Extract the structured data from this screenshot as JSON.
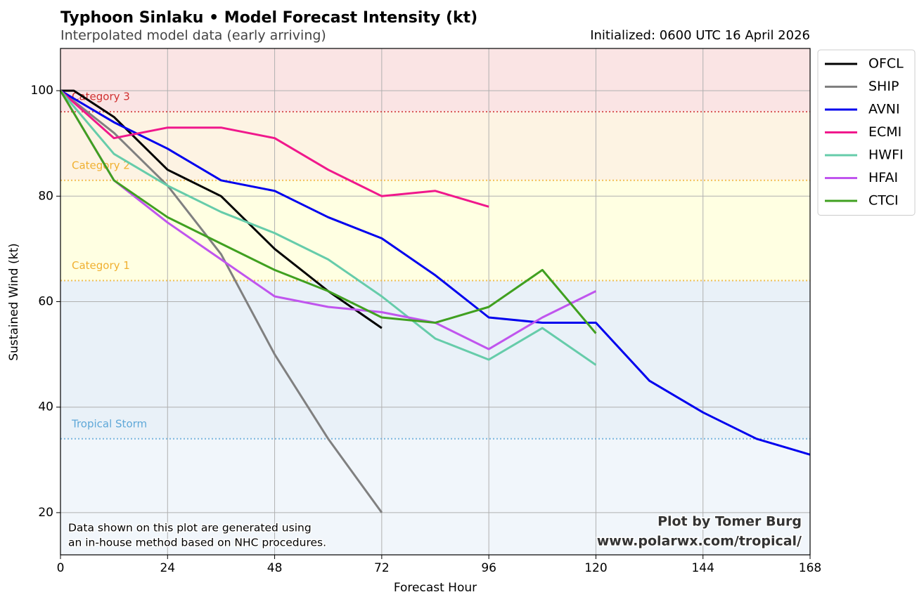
{
  "chart_data": {
    "type": "line",
    "title": "Typhoon Sinlaku • Model Forecast Intensity (kt)",
    "subtitle": "Interpolated model data (early arriving)",
    "initialized": "Initialized: 0600 UTC 16 April 2026",
    "xlabel": "Forecast Hour",
    "ylabel": "Sustained Wind (kt)",
    "note": [
      "Data shown on this plot are generated using",
      "an in-house method based on NHC procedures."
    ],
    "credit": [
      "Plot by Tomer Burg",
      "www.polarwx.com/tropical/"
    ],
    "xlim": [
      0,
      168
    ],
    "ylim": [
      12,
      108
    ],
    "xticks": [
      0,
      24,
      48,
      72,
      96,
      120,
      144,
      168
    ],
    "yticks": [
      20,
      40,
      60,
      80,
      100
    ],
    "grid": true,
    "legend": "outside-upper-right",
    "thresholds": [
      {
        "label": "Tropical Storm",
        "value": 34,
        "color": "#5fa8d8",
        "fill": "#e9f1f8"
      },
      {
        "label": "Category 1",
        "value": 64,
        "color": "#f0b030",
        "fill": "#ffffe2"
      },
      {
        "label": "Category 2",
        "value": 83,
        "color": "#f0b030",
        "fill": "#fdf3e3"
      },
      {
        "label": "Category 3",
        "value": 96,
        "color": "#d03030",
        "fill": "#fae4e4"
      }
    ],
    "below_fill": "#f1f6fb",
    "series": [
      {
        "name": "OFCL",
        "color": "#000000",
        "x": [
          0,
          3,
          12,
          24,
          36,
          48,
          60,
          72
        ],
        "values": [
          100,
          100,
          95,
          85,
          80,
          70,
          62,
          55
        ]
      },
      {
        "name": "SHIP",
        "color": "#808080",
        "x": [
          0,
          12,
          24,
          36,
          48,
          60,
          72
        ],
        "values": [
          100,
          92,
          82,
          69,
          50,
          34,
          20
        ]
      },
      {
        "name": "AVNI",
        "color": "#0000ee",
        "x": [
          0,
          12,
          24,
          36,
          48,
          60,
          72,
          84,
          96,
          108,
          120,
          132,
          144,
          156,
          168
        ],
        "values": [
          100,
          94,
          89,
          83,
          81,
          76,
          72,
          65,
          57,
          56,
          56,
          45,
          39,
          34,
          31
        ]
      },
      {
        "name": "ECMI",
        "color": "#f0188c",
        "x": [
          0,
          12,
          24,
          36,
          48,
          60,
          72,
          84,
          96
        ],
        "values": [
          100,
          91,
          93,
          93,
          91,
          85,
          80,
          81,
          78
        ]
      },
      {
        "name": "HWFI",
        "color": "#66ccaa",
        "x": [
          0,
          12,
          24,
          36,
          48,
          60,
          72,
          84,
          96,
          108,
          120
        ],
        "values": [
          100,
          88,
          82,
          77,
          73,
          68,
          61,
          53,
          49,
          55,
          48
        ]
      },
      {
        "name": "HFAI",
        "color": "#c055ee",
        "x": [
          0,
          12,
          24,
          36,
          48,
          60,
          72,
          84,
          96,
          108,
          120
        ],
        "values": [
          100,
          83,
          75,
          68,
          61,
          59,
          58,
          56,
          51,
          57,
          62
        ]
      },
      {
        "name": "CTCI",
        "color": "#40a020",
        "x": [
          0,
          12,
          24,
          36,
          48,
          60,
          72,
          84,
          96,
          108,
          120
        ],
        "values": [
          100,
          83,
          76,
          71,
          66,
          62,
          57,
          56,
          59,
          66,
          54
        ]
      }
    ]
  }
}
